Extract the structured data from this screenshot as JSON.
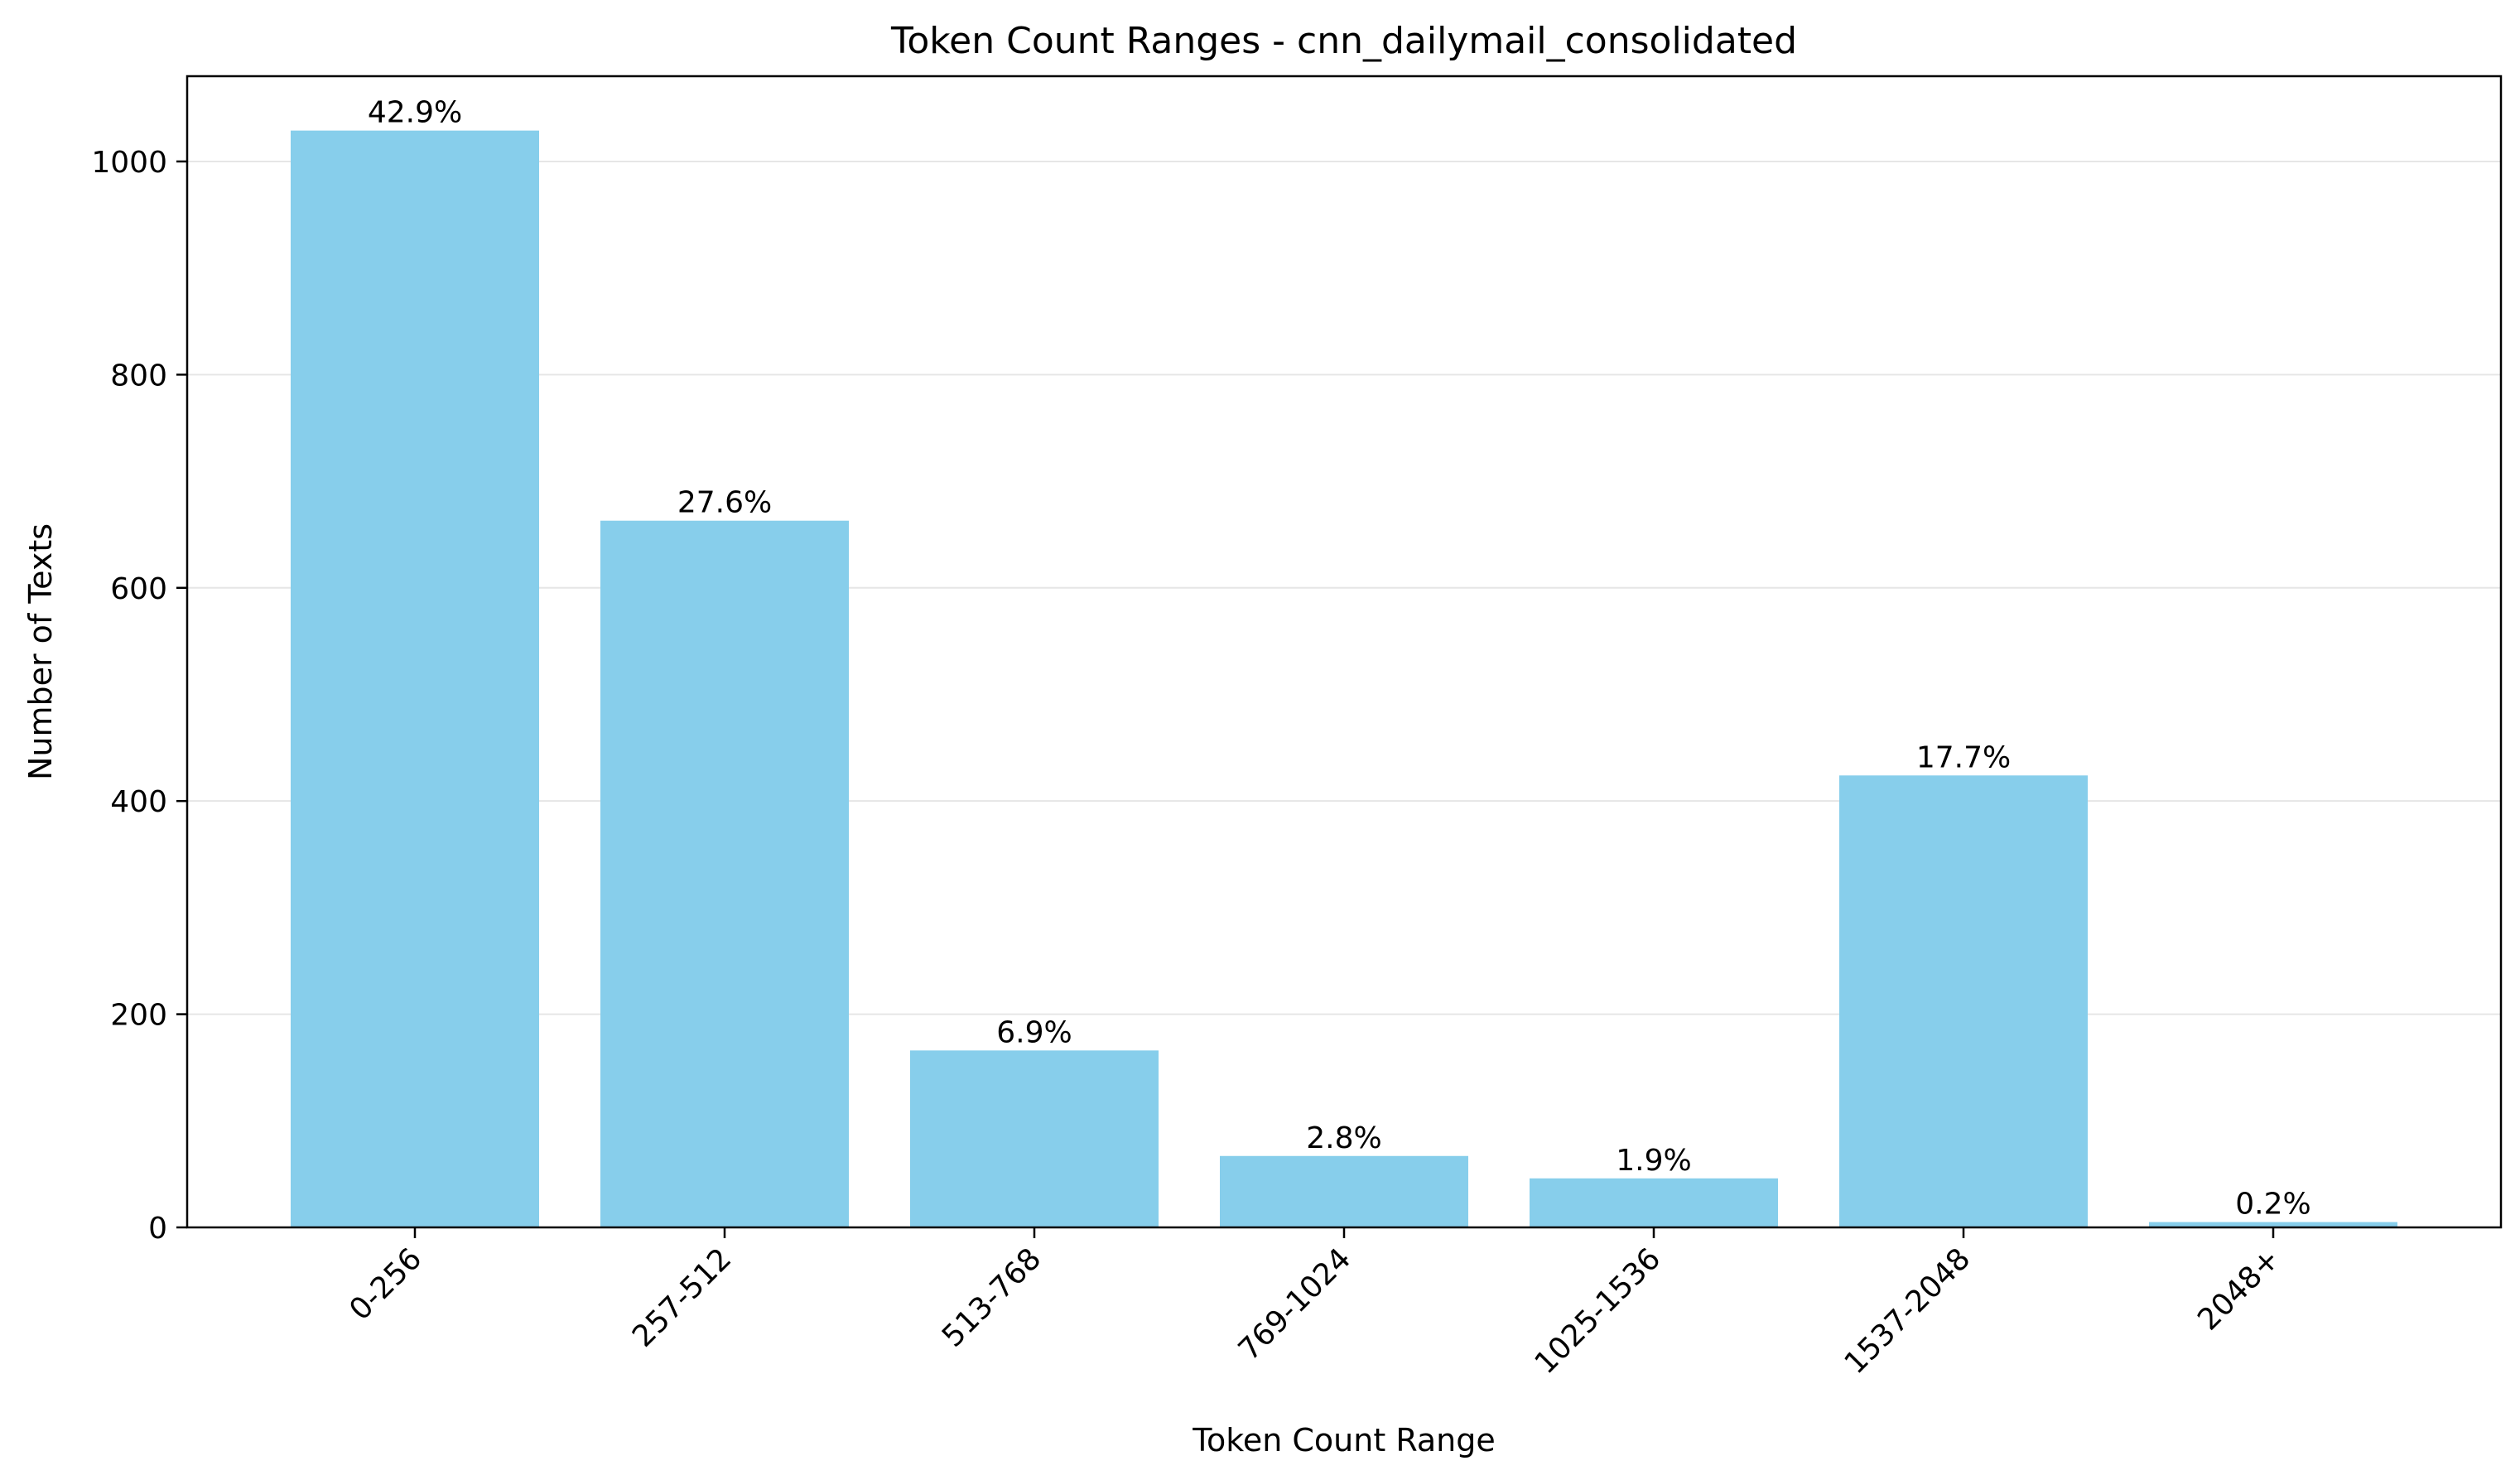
{
  "chart_data": {
    "type": "bar",
    "title": "Token Count Ranges - cnn_dailymail_consolidated",
    "xlabel": "Token Count Range",
    "ylabel": "Number of Texts",
    "categories": [
      "0-256",
      "257-512",
      "513-768",
      "769-1024",
      "1025-1536",
      "1537-2048",
      "2048+"
    ],
    "values": [
      1029,
      663,
      166,
      67,
      46,
      424,
      5
    ],
    "data_labels": [
      "42.9%",
      "27.6%",
      "6.9%",
      "2.8%",
      "1.9%",
      "17.7%",
      "0.2%"
    ],
    "ylim": [
      0,
      1080
    ],
    "yticks": [
      0,
      200,
      400,
      600,
      800,
      1000
    ],
    "grid": "y",
    "legend": "none",
    "colors": {
      "bar": "#87CEEB",
      "grid": "#e6e6e6",
      "axis": "#000000"
    }
  }
}
